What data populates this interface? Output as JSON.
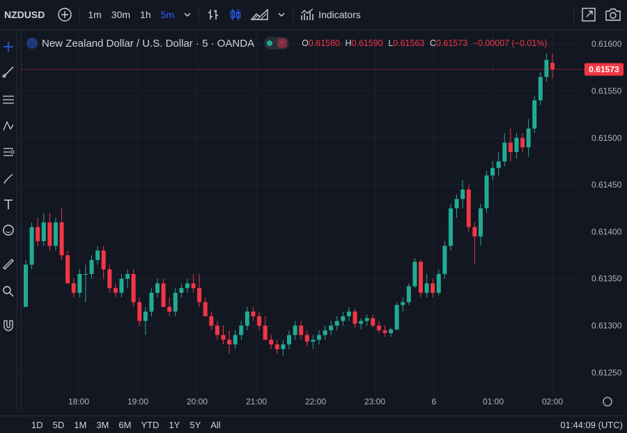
{
  "toolbar": {
    "symbol": "NZDUSD",
    "timeframes": [
      "1m",
      "30m",
      "1h",
      "5m"
    ],
    "active_timeframe": "5m",
    "indicators_label": "Indicators"
  },
  "legend": {
    "title": "New Zealand Dollar / U.S. Dollar · 5 · OANDA",
    "o_label": "O",
    "o_value": "0.61580",
    "h_label": "H",
    "h_value": "0.61590",
    "l_label": "L",
    "l_value": "0.61563",
    "c_label": "C",
    "c_value": "0.61573",
    "change": "−0.00007 (−0.01%)"
  },
  "bottom": {
    "ranges": [
      "1D",
      "5D",
      "1M",
      "3M",
      "6M",
      "YTD",
      "1Y",
      "5Y",
      "All"
    ],
    "clock": "01:44:09 (UTC)"
  },
  "colors": {
    "up": "#22ab94",
    "down": "#f23645",
    "active": "#2962ff",
    "bg": "#131722"
  },
  "icons": [
    "add-symbol-icon",
    "bar-chart-icon",
    "candles-icon",
    "area-icon",
    "chevron-down-icon",
    "indicators-icon",
    "fullscreen-icon",
    "camera-icon",
    "crosshair-icon",
    "trendline-icon",
    "fib-icon",
    "pattern-icon",
    "projection-icon",
    "brush-icon",
    "text-icon",
    "emoji-icon",
    "ruler-icon",
    "zoom-icon",
    "magnet-icon",
    "settings-gear-icon"
  ],
  "chart_data": {
    "type": "candlestick",
    "y_ticks": [
      "0.61600",
      "0.61550",
      "0.61500",
      "0.61450",
      "0.61400",
      "0.61350",
      "0.61300",
      "0.61250"
    ],
    "ylim": [
      0.61225,
      0.61615
    ],
    "x_ticks": [
      "18:00",
      "19:00",
      "20:00",
      "21:00",
      "22:00",
      "23:00",
      "6",
      "01:00",
      "02:00"
    ],
    "last_price": "0.61573",
    "candles": [
      [
        0.6132,
        0.6137,
        0.6132,
        0.61365
      ],
      [
        0.61365,
        0.6141,
        0.6136,
        0.61405
      ],
      [
        0.61405,
        0.61415,
        0.61385,
        0.6139
      ],
      [
        0.6139,
        0.6142,
        0.61385,
        0.6141
      ],
      [
        0.6141,
        0.6142,
        0.6138,
        0.61385
      ],
      [
        0.61385,
        0.61415,
        0.6138,
        0.6141
      ],
      [
        0.6141,
        0.61425,
        0.6137,
        0.61375
      ],
      [
        0.61375,
        0.6138,
        0.61345,
        0.61345
      ],
      [
        0.61345,
        0.6135,
        0.6133,
        0.61335
      ],
      [
        0.61335,
        0.6136,
        0.6133,
        0.61355
      ],
      [
        0.61355,
        0.61365,
        0.61325,
        0.61355
      ],
      [
        0.61355,
        0.61375,
        0.6135,
        0.6137
      ],
      [
        0.6137,
        0.61385,
        0.61365,
        0.6138
      ],
      [
        0.6138,
        0.61385,
        0.6135,
        0.6136
      ],
      [
        0.6136,
        0.61365,
        0.61335,
        0.6134
      ],
      [
        0.6134,
        0.61345,
        0.6133,
        0.61335
      ],
      [
        0.61335,
        0.61355,
        0.6133,
        0.6135
      ],
      [
        0.6135,
        0.6136,
        0.6134,
        0.61355
      ],
      [
        0.61355,
        0.6136,
        0.6132,
        0.61325
      ],
      [
        0.61325,
        0.6133,
        0.613,
        0.61305
      ],
      [
        0.61305,
        0.6132,
        0.6129,
        0.61315
      ],
      [
        0.61315,
        0.6134,
        0.6131,
        0.61335
      ],
      [
        0.61335,
        0.6135,
        0.6133,
        0.61345
      ],
      [
        0.61345,
        0.6135,
        0.6132,
        0.6132
      ],
      [
        0.6132,
        0.6133,
        0.6131,
        0.61315
      ],
      [
        0.61315,
        0.6134,
        0.6131,
        0.61335
      ],
      [
        0.61335,
        0.61345,
        0.6133,
        0.6134
      ],
      [
        0.6134,
        0.6135,
        0.61335,
        0.61345
      ],
      [
        0.61345,
        0.61355,
        0.61335,
        0.6134
      ],
      [
        0.6134,
        0.61355,
        0.6132,
        0.61325
      ],
      [
        0.61325,
        0.6133,
        0.6131,
        0.6131
      ],
      [
        0.6131,
        0.61315,
        0.61295,
        0.613
      ],
      [
        0.613,
        0.61305,
        0.61285,
        0.6129
      ],
      [
        0.6129,
        0.613,
        0.6128,
        0.61285
      ],
      [
        0.61285,
        0.61295,
        0.6127,
        0.6128
      ],
      [
        0.6128,
        0.61295,
        0.61275,
        0.6129
      ],
      [
        0.6129,
        0.61305,
        0.61285,
        0.613
      ],
      [
        0.613,
        0.6132,
        0.61295,
        0.61315
      ],
      [
        0.61315,
        0.6132,
        0.61305,
        0.6131
      ],
      [
        0.6131,
        0.61315,
        0.61295,
        0.613
      ],
      [
        0.613,
        0.6131,
        0.61285,
        0.61285
      ],
      [
        0.61285,
        0.6129,
        0.61275,
        0.6128
      ],
      [
        0.6128,
        0.61285,
        0.6127,
        0.61275
      ],
      [
        0.61275,
        0.61285,
        0.61268,
        0.6128
      ],
      [
        0.6128,
        0.61295,
        0.61275,
        0.6129
      ],
      [
        0.6129,
        0.61305,
        0.61285,
        0.613
      ],
      [
        0.613,
        0.61305,
        0.61285,
        0.6129
      ],
      [
        0.6129,
        0.61295,
        0.61278,
        0.61283
      ],
      [
        0.61283,
        0.6129,
        0.61275,
        0.61285
      ],
      [
        0.61285,
        0.61295,
        0.6128,
        0.6129
      ],
      [
        0.6129,
        0.613,
        0.61285,
        0.61295
      ],
      [
        0.61295,
        0.61305,
        0.6129,
        0.613
      ],
      [
        0.613,
        0.6131,
        0.61295,
        0.61305
      ],
      [
        0.61305,
        0.61315,
        0.613,
        0.6131
      ],
      [
        0.6131,
        0.6132,
        0.61305,
        0.61315
      ],
      [
        0.61315,
        0.61318,
        0.61298,
        0.61302
      ],
      [
        0.61302,
        0.61308,
        0.61296,
        0.61305
      ],
      [
        0.61305,
        0.61312,
        0.613,
        0.61308
      ],
      [
        0.61308,
        0.61312,
        0.61298,
        0.613
      ],
      [
        0.613,
        0.61305,
        0.61292,
        0.61295
      ],
      [
        0.61295,
        0.613,
        0.61288,
        0.61292
      ],
      [
        0.61292,
        0.61298,
        0.61288,
        0.61296
      ],
      [
        0.61296,
        0.61325,
        0.61295,
        0.61322
      ],
      [
        0.61322,
        0.6133,
        0.61315,
        0.61325
      ],
      [
        0.61325,
        0.61345,
        0.61322,
        0.61342
      ],
      [
        0.61342,
        0.61372,
        0.6134,
        0.61368
      ],
      [
        0.61368,
        0.6137,
        0.6133,
        0.61335
      ],
      [
        0.61335,
        0.61355,
        0.6133,
        0.61345
      ],
      [
        0.61345,
        0.6135,
        0.6133,
        0.61335
      ],
      [
        0.61335,
        0.6136,
        0.61332,
        0.61355
      ],
      [
        0.61355,
        0.6139,
        0.6135,
        0.61385
      ],
      [
        0.61385,
        0.6143,
        0.6138,
        0.61425
      ],
      [
        0.61425,
        0.6144,
        0.61415,
        0.61435
      ],
      [
        0.61435,
        0.61455,
        0.61425,
        0.61445
      ],
      [
        0.61445,
        0.6145,
        0.614,
        0.61405
      ],
      [
        0.61405,
        0.6141,
        0.61365,
        0.61395
      ],
      [
        0.61395,
        0.6143,
        0.61385,
        0.61425
      ],
      [
        0.61425,
        0.61465,
        0.6142,
        0.6146
      ],
      [
        0.6146,
        0.61475,
        0.61455,
        0.61468
      ],
      [
        0.61468,
        0.61485,
        0.6146,
        0.61475
      ],
      [
        0.61475,
        0.61505,
        0.6147,
        0.61495
      ],
      [
        0.61495,
        0.6151,
        0.61475,
        0.61485
      ],
      [
        0.61485,
        0.61505,
        0.61478,
        0.615
      ],
      [
        0.615,
        0.61505,
        0.61485,
        0.6149
      ],
      [
        0.6149,
        0.6152,
        0.6148,
        0.6151
      ],
      [
        0.6151,
        0.61545,
        0.61505,
        0.6154
      ],
      [
        0.6154,
        0.6157,
        0.61535,
        0.61565
      ],
      [
        0.61565,
        0.6159,
        0.6156,
        0.61583
      ],
      [
        0.6158,
        0.6159,
        0.61563,
        0.61573
      ]
    ]
  }
}
